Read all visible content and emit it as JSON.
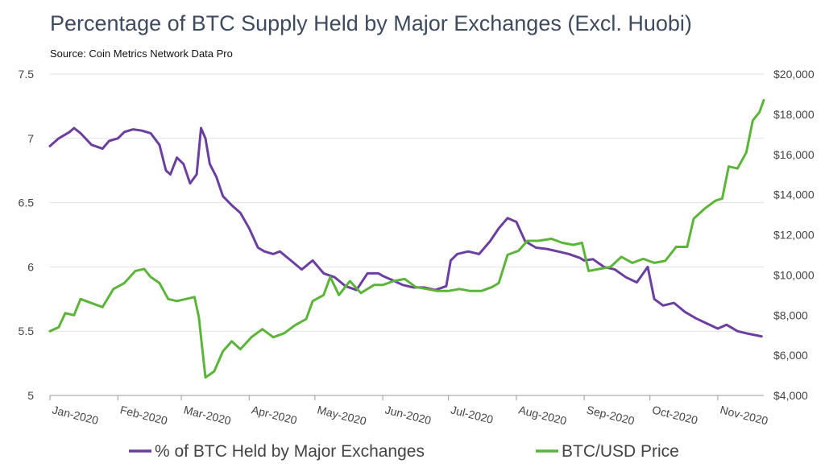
{
  "chart_data": {
    "type": "line",
    "title": "Percentage of BTC Supply Held by Major Exchanges (Excl. Huobi)",
    "subtitle": "Source: Coin Metrics Network Data Pro",
    "x_tick_labels": [
      "Jan-2020",
      "Feb-2020",
      "Mar-2020",
      "Apr-2020",
      "May-2020",
      "Jun-2020",
      "Jul-2020",
      "Aug-2020",
      "Sep-2020",
      "Oct-2020",
      "Nov-2020"
    ],
    "y_left": {
      "ticks": [
        "5",
        "5.5",
        "6",
        "6.5",
        "7",
        "7.5"
      ],
      "ylim": [
        5,
        7.5
      ]
    },
    "y_right": {
      "ticks": [
        "$4,000",
        "$6,000",
        "$8,000",
        "$10,000",
        "$12,000",
        "$14,000",
        "$16,000",
        "$18,000",
        "$20,000"
      ],
      "ylim": [
        4000,
        20000
      ]
    },
    "grid": true,
    "legend_position": "bottom",
    "series": [
      {
        "name": "% of BTC Held by Major Exchanges",
        "axis": "left",
        "color": "#6b3fa0",
        "x": [
          "2020-01-01",
          "2020-01-05",
          "2020-01-10",
          "2020-01-12",
          "2020-01-15",
          "2020-01-20",
          "2020-01-25",
          "2020-01-28",
          "2020-02-01",
          "2020-02-04",
          "2020-02-08",
          "2020-02-12",
          "2020-02-16",
          "2020-02-20",
          "2020-02-23",
          "2020-02-25",
          "2020-02-28",
          "2020-03-02",
          "2020-03-05",
          "2020-03-08",
          "2020-03-10",
          "2020-03-12",
          "2020-03-14",
          "2020-03-17",
          "2020-03-20",
          "2020-03-24",
          "2020-03-28",
          "2020-04-01",
          "2020-04-05",
          "2020-04-08",
          "2020-04-12",
          "2020-04-15",
          "2020-04-20",
          "2020-04-25",
          "2020-04-30",
          "2020-05-05",
          "2020-05-10",
          "2020-05-15",
          "2020-05-20",
          "2020-05-25",
          "2020-05-30",
          "2020-06-01",
          "2020-06-05",
          "2020-06-10",
          "2020-06-15",
          "2020-06-20",
          "2020-06-25",
          "2020-06-30",
          "2020-07-02",
          "2020-07-05",
          "2020-07-10",
          "2020-07-15",
          "2020-07-20",
          "2020-07-24",
          "2020-07-28",
          "2020-08-01",
          "2020-08-05",
          "2020-08-10",
          "2020-08-15",
          "2020-08-20",
          "2020-08-25",
          "2020-08-30",
          "2020-09-01",
          "2020-09-05",
          "2020-09-10",
          "2020-09-15",
          "2020-09-20",
          "2020-09-25",
          "2020-09-30",
          "2020-10-03",
          "2020-10-07",
          "2020-10-12",
          "2020-10-17",
          "2020-10-22",
          "2020-10-27",
          "2020-11-01",
          "2020-11-05",
          "2020-11-10",
          "2020-11-15",
          "2020-11-18",
          "2020-11-21"
        ],
        "y": [
          6.94,
          7.0,
          7.05,
          7.08,
          7.04,
          6.95,
          6.92,
          6.98,
          7.0,
          7.05,
          7.07,
          7.06,
          7.04,
          6.95,
          6.75,
          6.72,
          6.85,
          6.8,
          6.65,
          6.72,
          7.08,
          7.0,
          6.8,
          6.7,
          6.55,
          6.48,
          6.42,
          6.3,
          6.15,
          6.12,
          6.1,
          6.12,
          6.05,
          5.98,
          6.05,
          5.95,
          5.92,
          5.85,
          5.82,
          5.95,
          5.95,
          5.93,
          5.9,
          5.86,
          5.84,
          5.84,
          5.82,
          5.85,
          6.05,
          6.1,
          6.12,
          6.1,
          6.2,
          6.3,
          6.38,
          6.35,
          6.2,
          6.15,
          6.14,
          6.12,
          6.1,
          6.07,
          6.05,
          6.06,
          6.0,
          5.98,
          5.92,
          5.88,
          6.0,
          5.75,
          5.7,
          5.72,
          5.65,
          5.6,
          5.56,
          5.52,
          5.55,
          5.5,
          5.48,
          5.47,
          5.46
        ]
      },
      {
        "name": "BTC/USD Price",
        "axis": "right",
        "color": "#5cb43a",
        "x": [
          "2020-01-01",
          "2020-01-05",
          "2020-01-08",
          "2020-01-12",
          "2020-01-15",
          "2020-01-20",
          "2020-01-25",
          "2020-01-30",
          "2020-02-04",
          "2020-02-09",
          "2020-02-13",
          "2020-02-16",
          "2020-02-20",
          "2020-02-24",
          "2020-02-28",
          "2020-03-03",
          "2020-03-07",
          "2020-03-09",
          "2020-03-12",
          "2020-03-16",
          "2020-03-20",
          "2020-03-24",
          "2020-03-28",
          "2020-04-02",
          "2020-04-07",
          "2020-04-12",
          "2020-04-17",
          "2020-04-22",
          "2020-04-27",
          "2020-04-30",
          "2020-05-05",
          "2020-05-08",
          "2020-05-12",
          "2020-05-17",
          "2020-05-22",
          "2020-05-28",
          "2020-06-01",
          "2020-06-06",
          "2020-06-11",
          "2020-06-16",
          "2020-06-21",
          "2020-06-26",
          "2020-07-01",
          "2020-07-06",
          "2020-07-11",
          "2020-07-16",
          "2020-07-21",
          "2020-07-24",
          "2020-07-28",
          "2020-08-02",
          "2020-08-06",
          "2020-08-11",
          "2020-08-17",
          "2020-08-22",
          "2020-08-27",
          "2020-08-31",
          "2020-09-03",
          "2020-09-08",
          "2020-09-13",
          "2020-09-18",
          "2020-09-23",
          "2020-09-28",
          "2020-10-03",
          "2020-10-08",
          "2020-10-13",
          "2020-10-18",
          "2020-10-21",
          "2020-10-26",
          "2020-10-31",
          "2020-11-03",
          "2020-11-06",
          "2020-11-10",
          "2020-11-14",
          "2020-11-17",
          "2020-11-20",
          "2020-11-22"
        ],
        "y": [
          7200,
          7400,
          8100,
          8000,
          8800,
          8600,
          8400,
          9300,
          9600,
          10200,
          10300,
          9900,
          9600,
          8800,
          8700,
          8800,
          8900,
          7900,
          4900,
          5200,
          6200,
          6700,
          6300,
          6900,
          7300,
          6900,
          7100,
          7500,
          7800,
          8700,
          9000,
          9900,
          9000,
          9700,
          9100,
          9500,
          9500,
          9700,
          9800,
          9400,
          9300,
          9200,
          9200,
          9300,
          9200,
          9200,
          9400,
          9600,
          11000,
          11200,
          11700,
          11700,
          11800,
          11600,
          11500,
          11600,
          10200,
          10300,
          10400,
          10900,
          10600,
          10800,
          10600,
          10700,
          11400,
          11400,
          12800,
          13300,
          13700,
          13800,
          15400,
          15300,
          16100,
          17700,
          18100,
          18700
        ]
      }
    ]
  }
}
